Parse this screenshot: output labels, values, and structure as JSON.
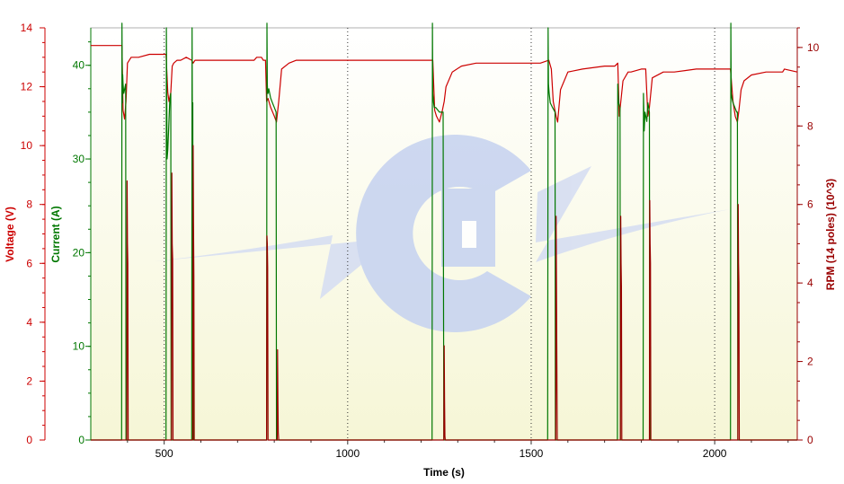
{
  "chart_data": {
    "type": "line",
    "xlabel": "Time (s)",
    "xlim": [
      300,
      2225
    ],
    "x_ticks": [
      500,
      1000,
      1500,
      2000
    ],
    "grid": "vertical dotted lines at x ticks",
    "axes": {
      "voltage": {
        "label": "Voltage (V)",
        "ylim": [
          0,
          14
        ],
        "ticks": [
          0,
          2,
          4,
          6,
          8,
          10,
          12,
          14
        ],
        "color": "#cc0000",
        "side": "left"
      },
      "current": {
        "label": "Current (A)",
        "ylim": [
          0,
          44
        ],
        "ticks": [
          0,
          10,
          20,
          30,
          40
        ],
        "color": "#007700",
        "side": "left"
      },
      "rpm": {
        "label": "RPM (14 poles) (10^3)",
        "ylim": [
          0,
          10.5
        ],
        "ticks": [
          0,
          2,
          4,
          6,
          8,
          10
        ],
        "color": "#990000",
        "side": "right"
      }
    },
    "series": [
      {
        "name": "Voltage (V)",
        "axis": "voltage",
        "color": "#cc0000",
        "x": [
          300,
          385,
          388,
          392,
          396,
          400,
          410,
          430,
          460,
          470,
          505,
          510,
          513,
          518,
          522,
          526,
          535,
          545,
          560,
          575,
          579,
          584,
          600,
          650,
          700,
          745,
          752,
          765,
          770,
          776,
          779,
          783,
          790,
          800,
          806,
          812,
          820,
          840,
          860,
          890,
          950,
          1000,
          1100,
          1180,
          1232,
          1237,
          1242,
          1250,
          1258,
          1263,
          1268,
          1285,
          1310,
          1350,
          1400,
          1450,
          1480,
          1525,
          1548,
          1555,
          1560,
          1568,
          1572,
          1580,
          1600,
          1640,
          1700,
          1728,
          1736,
          1740,
          1750,
          1764,
          1772,
          1800,
          1812,
          1818,
          1822,
          1830,
          1860,
          1890,
          1950,
          2000,
          2043,
          2050,
          2056,
          2062,
          2066,
          2072,
          2080,
          2100,
          2140,
          2185,
          2190,
          2225
        ],
        "y": [
          13.4,
          13.4,
          11.2,
          10.9,
          11.5,
          12.8,
          13.0,
          13.0,
          13.1,
          13.1,
          13.1,
          11.8,
          11.5,
          11.8,
          12.7,
          12.8,
          12.9,
          12.9,
          13.0,
          12.9,
          12.8,
          12.9,
          12.9,
          12.9,
          12.9,
          12.9,
          13.0,
          13.0,
          12.9,
          12.9,
          11.5,
          11.6,
          11.3,
          11.0,
          10.8,
          11.5,
          12.6,
          12.8,
          12.9,
          12.9,
          12.9,
          12.9,
          12.9,
          12.9,
          12.9,
          11.2,
          11.0,
          10.8,
          11.2,
          11.5,
          12.0,
          12.5,
          12.7,
          12.8,
          12.8,
          12.8,
          12.8,
          12.8,
          12.9,
          12.6,
          11.5,
          11.0,
          10.8,
          11.9,
          12.5,
          12.6,
          12.7,
          12.7,
          12.8,
          11.0,
          12.2,
          12.5,
          12.5,
          12.6,
          12.6,
          11.0,
          11.3,
          12.3,
          12.5,
          12.5,
          12.6,
          12.6,
          12.6,
          11.5,
          11.0,
          10.8,
          11.2,
          11.9,
          12.2,
          12.4,
          12.5,
          12.5,
          12.6,
          12.5
        ]
      },
      {
        "name": "Current (A)",
        "axis": "current",
        "color": "#007700",
        "x": [
          300,
          384,
          385,
          386,
          387,
          388,
          390,
          395,
          396,
          397,
          505,
          506,
          508,
          510,
          515,
          518,
          519,
          520,
          575,
          576,
          577,
          578,
          579,
          779,
          780,
          781,
          782,
          783,
          785,
          790,
          795,
          800,
          805,
          806,
          807,
          1230,
          1231,
          1232,
          1234,
          1236,
          1240,
          1250,
          1260,
          1262,
          1263,
          1545,
          1546,
          1547,
          1549,
          1552,
          1558,
          1565,
          1566,
          1567,
          1735,
          1736,
          1737,
          1738,
          1742,
          1743,
          1744,
          1805,
          1806,
          1808,
          1810,
          1815,
          1818,
          1822,
          1823,
          2043,
          2044,
          2045,
          2047,
          2050,
          2055,
          2060,
          2062,
          2063,
          2225
        ],
        "y": [
          0,
          0,
          44.5,
          36,
          39,
          38,
          37,
          38,
          0,
          0,
          0,
          44,
          30,
          31,
          36,
          37,
          0,
          0,
          0,
          44,
          31,
          36,
          0,
          0,
          44.5,
          38,
          37,
          37,
          37.5,
          36.5,
          36,
          35.5,
          35,
          0,
          0,
          0,
          44.5,
          37,
          36,
          35.5,
          35.5,
          35,
          35,
          0,
          0,
          0,
          44,
          38,
          37,
          36,
          35.5,
          35,
          0,
          0,
          0,
          38,
          37,
          36,
          35.5,
          0,
          0,
          0,
          37,
          33,
          35,
          34,
          36,
          35,
          0,
          0,
          44.5,
          37,
          36.5,
          36,
          35.5,
          35,
          35,
          0,
          0
        ]
      },
      {
        "name": "RPM (14 poles) (10^3)",
        "axis": "rpm",
        "color": "#990000",
        "x": [
          300,
          398,
          399,
          400,
          401,
          402,
          403,
          520,
          521,
          522,
          523,
          524,
          525,
          578,
          579,
          580,
          581,
          582,
          583,
          779,
          780,
          781,
          782,
          783,
          784,
          808,
          809,
          810,
          811,
          812,
          813,
          1262,
          1263,
          1264,
          1265,
          1266,
          1267,
          1567,
          1568,
          1569,
          1570,
          1571,
          1572,
          1743,
          1744,
          1745,
          1746,
          1747,
          1748,
          1822,
          1823,
          1824,
          1825,
          1826,
          1827,
          2063,
          2064,
          2065,
          2066,
          2067,
          2068,
          2225
        ],
        "y": [
          0,
          0,
          6.6,
          5.0,
          4.5,
          0,
          0,
          0,
          6.8,
          5.0,
          4.6,
          0,
          0,
          0,
          7.5,
          5.5,
          4.2,
          0,
          0,
          0,
          5.2,
          5.0,
          4.4,
          0,
          0,
          0,
          2.3,
          1.0,
          0.2,
          0,
          0,
          0,
          2.4,
          1.0,
          0.1,
          0,
          0,
          0,
          5.7,
          4.0,
          1.7,
          0,
          0,
          0,
          5.7,
          4.5,
          3.9,
          0,
          0,
          0,
          6.1,
          5.0,
          4.5,
          0,
          0,
          0,
          6.0,
          4.5,
          4.0,
          0,
          0,
          0
        ]
      }
    ]
  }
}
